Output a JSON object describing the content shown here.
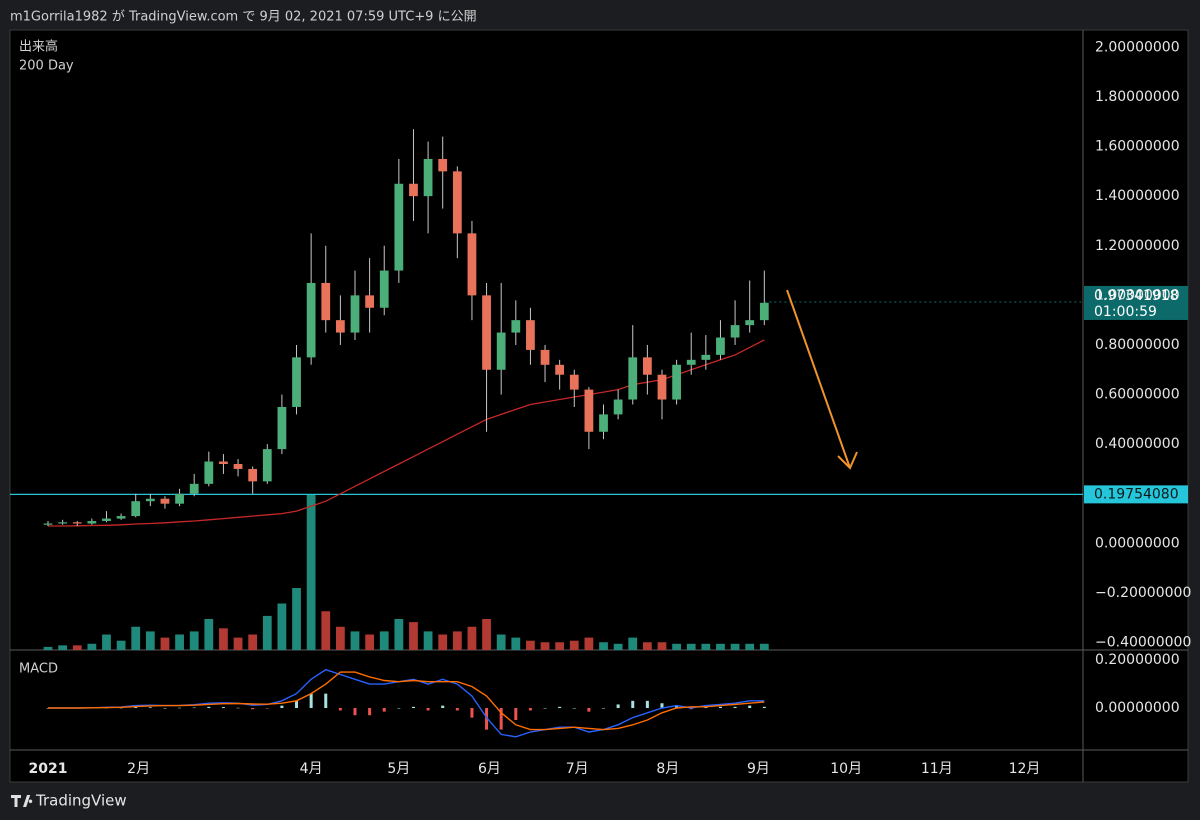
{
  "header": {
    "text": "m1Gorrila1982 が TradingView.com で 9月 02, 2021 07:59 UTC+9 に公開"
  },
  "footer": {
    "brand": "TradingView"
  },
  "chart_data": {
    "type": "candlestick",
    "up_color": "#4caf7a",
    "down_color": "#e8735a",
    "wick_color": "#c8c8c8",
    "xlim": [
      -13,
      354
    ],
    "xticks": [
      {
        "value": 0,
        "label": "2021"
      },
      {
        "value": 31,
        "label": "2月"
      },
      {
        "value": 90,
        "label": "4月"
      },
      {
        "value": 120,
        "label": "5月"
      },
      {
        "value": 151,
        "label": "6月"
      },
      {
        "value": 181,
        "label": "7月"
      },
      {
        "value": 212,
        "label": "8月"
      },
      {
        "value": 243,
        "label": "9月"
      },
      {
        "value": 273,
        "label": "10月"
      },
      {
        "value": 304,
        "label": "11月"
      },
      {
        "value": 334,
        "label": "12月"
      }
    ],
    "ylim": [
      -0.43,
      2.07
    ],
    "yticks": [
      {
        "value": 2,
        "label": "2.00000000"
      },
      {
        "value": 1.8,
        "label": "1.80000000"
      },
      {
        "value": 1.6,
        "label": "1.60000000"
      },
      {
        "value": 1.4,
        "label": "1.40000000"
      },
      {
        "value": 1.2,
        "label": "1.20000000"
      },
      {
        "value": 1,
        "label": "1.00000000"
      },
      {
        "value": 0.8,
        "label": "0.80000000"
      },
      {
        "value": 0.6,
        "label": "0.60000000"
      },
      {
        "value": 0.4,
        "label": "0.40000000"
      },
      {
        "value": 0,
        "label": "0.00000000"
      },
      {
        "value": -0.2,
        "label": "−0.20000000"
      },
      {
        "value": -0.4,
        "label": "−0.40000000"
      }
    ],
    "grid": false,
    "x": [
      0,
      5,
      10,
      15,
      20,
      25,
      30,
      35,
      40,
      45,
      50,
      55,
      60,
      65,
      70,
      75,
      80,
      85,
      90,
      95,
      100,
      105,
      110,
      115,
      120,
      125,
      130,
      135,
      140,
      145,
      150,
      155,
      160,
      165,
      170,
      175,
      180,
      185,
      190,
      195,
      200,
      205,
      210,
      215,
      220,
      225,
      230,
      235,
      240,
      245
    ],
    "open": [
      0.075,
      0.08,
      0.085,
      0.08,
      0.09,
      0.1,
      0.11,
      0.17,
      0.18,
      0.16,
      0.2,
      0.24,
      0.33,
      0.32,
      0.3,
      0.25,
      0.38,
      0.55,
      0.75,
      1.05,
      0.9,
      0.85,
      1.0,
      0.95,
      1.1,
      1.45,
      1.4,
      1.55,
      1.5,
      1.25,
      1.0,
      0.7,
      0.85,
      0.9,
      0.78,
      0.72,
      0.68,
      0.62,
      0.45,
      0.52,
      0.58,
      0.75,
      0.68,
      0.58,
      0.72,
      0.74,
      0.76,
      0.83,
      0.88,
      0.9
    ],
    "high": [
      0.09,
      0.095,
      0.09,
      0.1,
      0.13,
      0.12,
      0.2,
      0.2,
      0.19,
      0.22,
      0.28,
      0.37,
      0.36,
      0.34,
      0.31,
      0.4,
      0.6,
      0.8,
      1.25,
      1.2,
      1.0,
      1.1,
      1.15,
      1.2,
      1.55,
      1.67,
      1.62,
      1.64,
      1.52,
      1.3,
      1.05,
      1.05,
      0.98,
      0.95,
      0.8,
      0.74,
      0.7,
      0.63,
      0.56,
      0.62,
      0.88,
      0.8,
      0.7,
      0.74,
      0.85,
      0.84,
      0.9,
      0.98,
      1.06,
      1.1
    ],
    "low": [
      0.07,
      0.075,
      0.07,
      0.075,
      0.085,
      0.095,
      0.105,
      0.15,
      0.14,
      0.15,
      0.19,
      0.23,
      0.28,
      0.27,
      0.2,
      0.24,
      0.36,
      0.52,
      0.72,
      0.85,
      0.8,
      0.82,
      0.85,
      0.92,
      1.05,
      1.3,
      1.25,
      1.35,
      1.15,
      0.9,
      0.45,
      0.6,
      0.8,
      0.72,
      0.65,
      0.62,
      0.55,
      0.38,
      0.42,
      0.5,
      0.56,
      0.6,
      0.5,
      0.56,
      0.68,
      0.7,
      0.74,
      0.8,
      0.85,
      0.88
    ],
    "close": [
      0.08,
      0.085,
      0.08,
      0.09,
      0.1,
      0.11,
      0.17,
      0.18,
      0.16,
      0.2,
      0.24,
      0.33,
      0.32,
      0.3,
      0.25,
      0.38,
      0.55,
      0.75,
      1.05,
      0.9,
      0.85,
      1.0,
      0.95,
      1.1,
      1.45,
      1.4,
      1.55,
      1.5,
      1.25,
      1.0,
      0.7,
      0.85,
      0.9,
      0.78,
      0.72,
      0.68,
      0.62,
      0.45,
      0.52,
      0.58,
      0.75,
      0.68,
      0.58,
      0.72,
      0.74,
      0.76,
      0.83,
      0.88,
      0.9,
      0.97
    ],
    "series": [
      {
        "name": "200 Day",
        "color": "#c62828",
        "values": [
          0.07,
          0.07,
          0.071,
          0.072,
          0.073,
          0.075,
          0.078,
          0.08,
          0.083,
          0.087,
          0.09,
          0.095,
          0.1,
          0.105,
          0.11,
          0.115,
          0.12,
          0.13,
          0.15,
          0.17,
          0.2,
          0.23,
          0.26,
          0.29,
          0.32,
          0.35,
          0.38,
          0.41,
          0.44,
          0.47,
          0.5,
          0.52,
          0.54,
          0.56,
          0.57,
          0.58,
          0.59,
          0.6,
          0.61,
          0.62,
          0.64,
          0.65,
          0.66,
          0.68,
          0.7,
          0.72,
          0.74,
          0.76,
          0.79,
          0.82
        ]
      }
    ],
    "volume": {
      "name": "出来高",
      "ylim": [
        0,
        100
      ],
      "up_color": "#1f8a7c",
      "down_color": "#b23a33",
      "values": [
        2,
        3,
        3,
        4,
        10,
        6,
        15,
        12,
        8,
        10,
        12,
        20,
        14,
        8,
        10,
        22,
        30,
        40,
        100,
        25,
        15,
        12,
        10,
        12,
        20,
        18,
        12,
        10,
        12,
        15,
        20,
        10,
        8,
        6,
        5,
        5,
        6,
        8,
        5,
        4,
        8,
        5,
        5,
        4,
        4,
        4,
        4,
        4,
        4,
        4
      ]
    },
    "hline": {
      "value": 0.1975408,
      "label": "0.19754080",
      "color": "#26c6da"
    },
    "last_price": {
      "value": 0.97341918,
      "countdown": "01:00:59",
      "color": "#0c6b6a"
    },
    "macd_pane": {
      "name": "MACD",
      "ylim": [
        -0.175,
        0.242
      ],
      "yticks": [
        {
          "value": 0.2,
          "label": "0.20000000"
        },
        {
          "value": 0,
          "label": "0.00000000"
        }
      ],
      "macd": {
        "color": "#2962ff",
        "values": [
          0,
          0,
          0,
          0.001,
          0.003,
          0.004,
          0.01,
          0.012,
          0.01,
          0.011,
          0.014,
          0.02,
          0.022,
          0.02,
          0.012,
          0.015,
          0.03,
          0.06,
          0.12,
          0.16,
          0.14,
          0.12,
          0.1,
          0.1,
          0.11,
          0.12,
          0.1,
          0.12,
          0.1,
          0.05,
          -0.04,
          -0.11,
          -0.12,
          -0.1,
          -0.09,
          -0.08,
          -0.08,
          -0.1,
          -0.09,
          -0.07,
          -0.04,
          -0.02,
          0,
          0.01,
          0,
          0.01,
          0.015,
          0.02,
          0.03,
          0.03
        ]
      },
      "signal": {
        "color": "#ff6d00",
        "values": [
          0,
          0,
          0,
          0.001,
          0.002,
          0.003,
          0.006,
          0.009,
          0.01,
          0.01,
          0.012,
          0.015,
          0.018,
          0.019,
          0.017,
          0.016,
          0.02,
          0.03,
          0.06,
          0.1,
          0.15,
          0.15,
          0.13,
          0.115,
          0.11,
          0.115,
          0.11,
          0.11,
          0.11,
          0.09,
          0.05,
          -0.02,
          -0.07,
          -0.09,
          -0.09,
          -0.085,
          -0.08,
          -0.085,
          -0.09,
          -0.085,
          -0.07,
          -0.05,
          -0.02,
          0,
          0.005,
          0.005,
          0.01,
          0.015,
          0.02,
          0.025
        ]
      },
      "histogram": {
        "up_color": "#a6e3dc",
        "down_color": "#ef5350",
        "values": [
          0,
          0,
          0,
          0,
          0.001,
          0.001,
          0.004,
          0.003,
          0,
          0.001,
          0.002,
          0.005,
          0.004,
          0.001,
          -0.005,
          -0.001,
          0.01,
          0.03,
          0.06,
          0.06,
          -0.01,
          -0.03,
          -0.03,
          -0.015,
          0,
          0.005,
          -0.01,
          0.01,
          -0.01,
          -0.04,
          -0.09,
          -0.09,
          -0.05,
          -0.01,
          0,
          0.005,
          0,
          -0.015,
          0,
          0.015,
          0.03,
          0.03,
          0.02,
          0.01,
          -0.005,
          0.005,
          0.005,
          0.005,
          0.01,
          0.005
        ]
      }
    }
  }
}
